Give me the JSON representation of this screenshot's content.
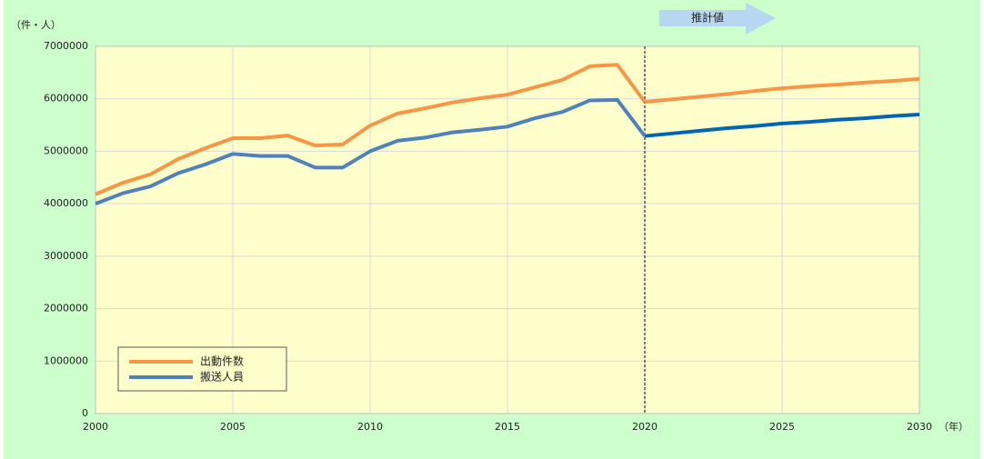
{
  "chart_data": {
    "type": "line",
    "y_unit_label": "（件・人）",
    "x_unit_label": "（年）",
    "annotation": {
      "text": "推計値",
      "x": 2020
    },
    "x": [
      2000,
      2001,
      2002,
      2003,
      2004,
      2005,
      2006,
      2007,
      2008,
      2009,
      2010,
      2011,
      2012,
      2013,
      2014,
      2015,
      2016,
      2017,
      2018,
      2019,
      2020,
      2021,
      2022,
      2023,
      2024,
      2025,
      2026,
      2027,
      2028,
      2029,
      2030
    ],
    "series": [
      {
        "name": "出動件数",
        "color": "#f79646",
        "projection_color": "#f79646",
        "values": [
          4180000,
          4400000,
          4560000,
          4850000,
          5060000,
          5250000,
          5250000,
          5300000,
          5110000,
          5130000,
          5490000,
          5720000,
          5820000,
          5930000,
          6010000,
          6080000,
          6220000,
          6360000,
          6620000,
          6650000,
          5940000,
          5990000,
          6040000,
          6090000,
          6150000,
          6200000,
          6240000,
          6270000,
          6310000,
          6340000,
          6380000
        ]
      },
      {
        "name": "搬送人員",
        "color": "#4f81bd",
        "projection_color": "#0066b3",
        "values": [
          4000000,
          4200000,
          4330000,
          4580000,
          4750000,
          4950000,
          4910000,
          4910000,
          4690000,
          4690000,
          5000000,
          5200000,
          5260000,
          5360000,
          5410000,
          5470000,
          5630000,
          5750000,
          5970000,
          5980000,
          5290000,
          5340000,
          5390000,
          5440000,
          5480000,
          5530000,
          5560000,
          5600000,
          5630000,
          5670000,
          5700000
        ]
      }
    ],
    "xlim": [
      2000,
      2030
    ],
    "xticks": [
      2000,
      2005,
      2010,
      2015,
      2020,
      2025,
      2030
    ],
    "ylim": [
      0,
      7000000
    ],
    "yticks": [
      0,
      1000000,
      2000000,
      3000000,
      4000000,
      5000000,
      6000000,
      7000000
    ],
    "grid": true,
    "legend": "lower-left"
  }
}
